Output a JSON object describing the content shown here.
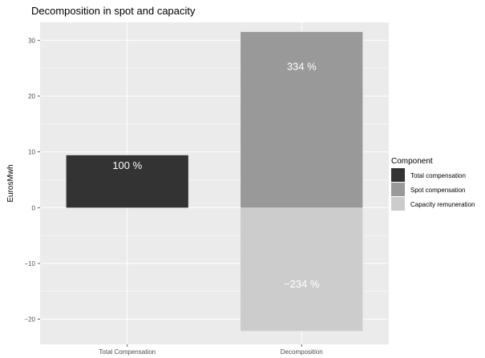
{
  "chart_data": {
    "type": "bar",
    "stacked": true,
    "title": "Decomposition in spot and capacity",
    "xlabel": "",
    "ylabel": "EurosMwh",
    "ylim": [
      -24.5,
      33.2
    ],
    "yticks": [
      -20,
      -10,
      0,
      10,
      20,
      30
    ],
    "ytick_labels": [
      "−20",
      "−10",
      "0",
      "10",
      "20",
      "30"
    ],
    "categories": [
      "Total Compensation",
      "Decomposition"
    ],
    "grid": true,
    "legend": {
      "title": "Component",
      "position": "right",
      "entries": [
        "Total compensation",
        "Spot compensation",
        "Capacity remuneration"
      ]
    },
    "series": [
      {
        "name": "Total compensation",
        "color": "#333333",
        "values": [
          9.4,
          null
        ],
        "labels": [
          "100 %",
          null
        ]
      },
      {
        "name": "Spot compensation",
        "color": "#999999",
        "values": [
          null,
          31.5
        ],
        "labels": [
          null,
          "334 %"
        ]
      },
      {
        "name": "Capacity remuneration",
        "color": "#cccccc",
        "values": [
          null,
          -22.1
        ],
        "labels": [
          null,
          "−234 %"
        ]
      }
    ]
  }
}
